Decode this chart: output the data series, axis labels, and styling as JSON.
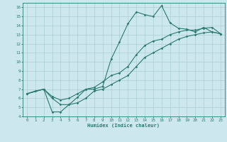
{
  "background_color": "#cce8ee",
  "line_color": "#2a7a6f",
  "grid_color": "#aacdd5",
  "xlabel": "Humidex (Indice chaleur)",
  "xlim": [
    -0.5,
    23.5
  ],
  "ylim": [
    4,
    16.5
  ],
  "xticks": [
    0,
    1,
    2,
    3,
    4,
    5,
    6,
    7,
    8,
    9,
    10,
    11,
    12,
    13,
    14,
    15,
    16,
    17,
    18,
    19,
    20,
    21,
    22,
    23
  ],
  "yticks": [
    4,
    5,
    6,
    7,
    8,
    9,
    10,
    11,
    12,
    13,
    14,
    15,
    16
  ],
  "line1_x": [
    0,
    1,
    2,
    3,
    4,
    5,
    6,
    7,
    8,
    9,
    10,
    11,
    12,
    13,
    14,
    15,
    16,
    17,
    18,
    19,
    20,
    21,
    22,
    23
  ],
  "line1_y": [
    6.5,
    6.8,
    7.0,
    4.5,
    4.5,
    5.3,
    6.1,
    7.0,
    7.0,
    7.3,
    10.3,
    12.2,
    14.2,
    15.5,
    15.2,
    15.0,
    16.2,
    14.3,
    13.7,
    13.6,
    13.3,
    13.8,
    13.3,
    13.1
  ],
  "line2_x": [
    0,
    2,
    3,
    4,
    5,
    6,
    7,
    8,
    9,
    10,
    11,
    12,
    13,
    14,
    15,
    16,
    17,
    18,
    19,
    20,
    21,
    22,
    23
  ],
  "line2_y": [
    6.5,
    7.0,
    6.2,
    5.8,
    6.0,
    6.5,
    7.0,
    7.2,
    7.8,
    8.5,
    8.8,
    9.5,
    10.8,
    11.8,
    12.3,
    12.5,
    13.0,
    13.3,
    13.5,
    13.5,
    13.7,
    13.8,
    13.1
  ],
  "line3_x": [
    0,
    2,
    3,
    4,
    5,
    6,
    7,
    8,
    9,
    10,
    11,
    12,
    13,
    14,
    15,
    16,
    17,
    18,
    19,
    20,
    21,
    22,
    23
  ],
  "line3_y": [
    6.5,
    7.0,
    6.0,
    5.3,
    5.3,
    5.5,
    6.0,
    6.8,
    7.0,
    7.5,
    8.0,
    8.5,
    9.5,
    10.5,
    11.0,
    11.5,
    12.0,
    12.5,
    12.8,
    13.0,
    13.2,
    13.3,
    13.1
  ]
}
